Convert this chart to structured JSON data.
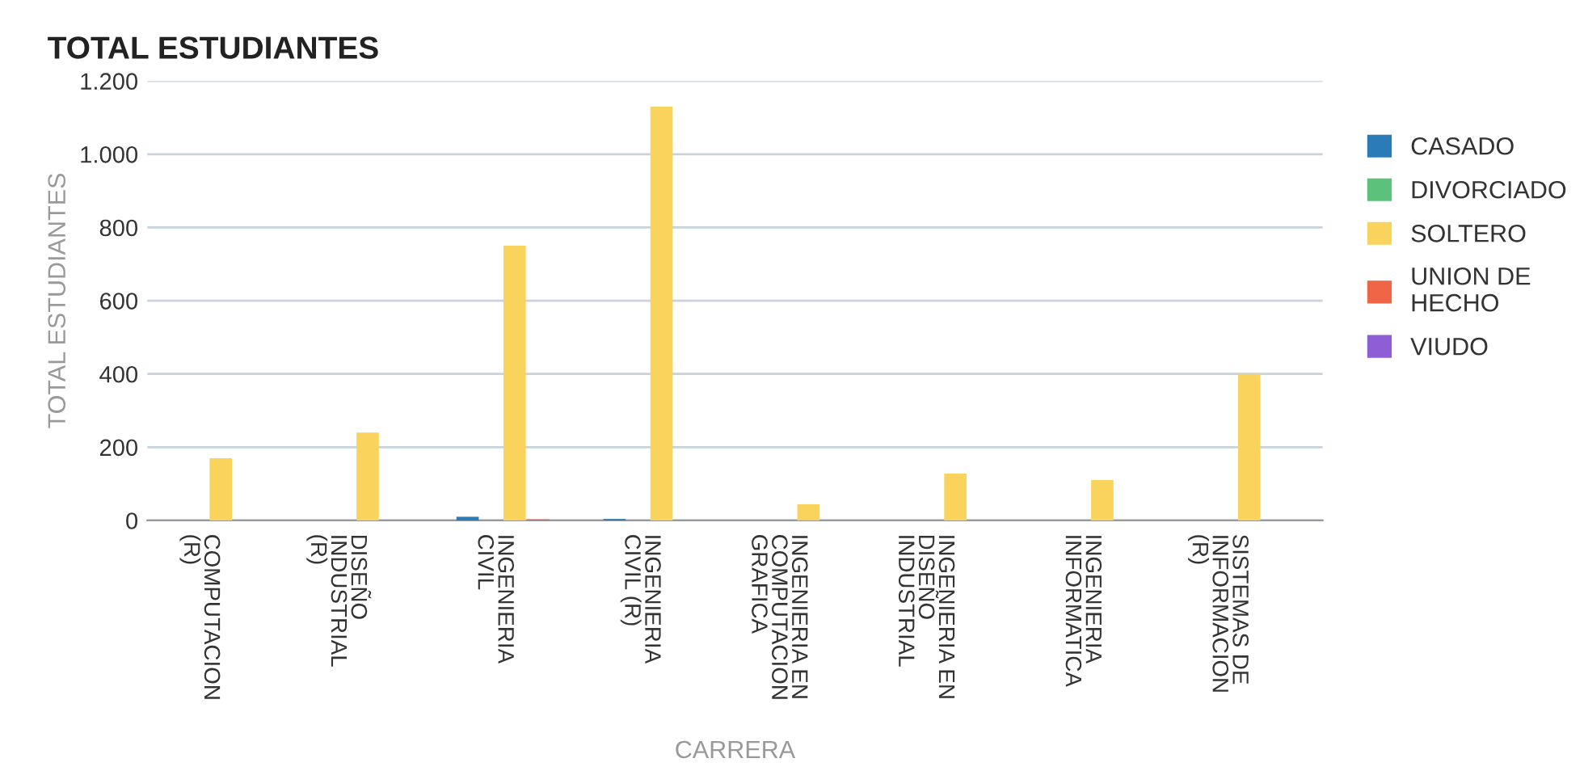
{
  "chart_data": {
    "type": "bar",
    "title": "TOTAL ESTUDIANTES",
    "xlabel": "CARRERA",
    "ylabel": "TOTAL ESTUDIANTES",
    "categories": [
      "COMPUTACION\n(R)",
      "DISEÑO\nINDUSTRIAL\n(R)",
      "INGENIERIA\nCIVIL",
      "INGENIERIA\nCIVIL (R)",
      "INGENIERIA EN\nCOMPUTACION\nGRAFICA",
      "INGENIERIA EN\nDISEÑO\nINDUSTRIAL",
      "INGENIERIA\nINFORMATICA",
      "SISTEMAS DE\nINFORMACION\n(R)"
    ],
    "series": [
      {
        "name": "CASADO",
        "color": "#2b7bb9",
        "values": [
          null,
          null,
          10,
          4,
          null,
          null,
          null,
          null
        ]
      },
      {
        "name": "DIVORCIADO",
        "color": "#5cc17a",
        "values": [
          null,
          null,
          null,
          null,
          null,
          null,
          null,
          null
        ]
      },
      {
        "name": "SOLTERO",
        "color": "#f9d35c",
        "values": [
          170,
          240,
          750,
          1130,
          44,
          128,
          110,
          400
        ]
      },
      {
        "name": "UNION DE\nHECHO",
        "color": "#ef6545",
        "values": [
          null,
          null,
          3,
          null,
          null,
          null,
          null,
          null
        ]
      },
      {
        "name": "VIUDO",
        "color": "#8e5ed6",
        "values": [
          null,
          null,
          null,
          null,
          null,
          null,
          null,
          null
        ]
      }
    ],
    "ylim": [
      0,
      1200
    ],
    "yticks": [
      0,
      200,
      400,
      600,
      800,
      {
        "value": 1000,
        "label": "1.000"
      },
      {
        "value": 1200,
        "label": "1.200"
      }
    ],
    "grid": "y",
    "legend": "right"
  }
}
